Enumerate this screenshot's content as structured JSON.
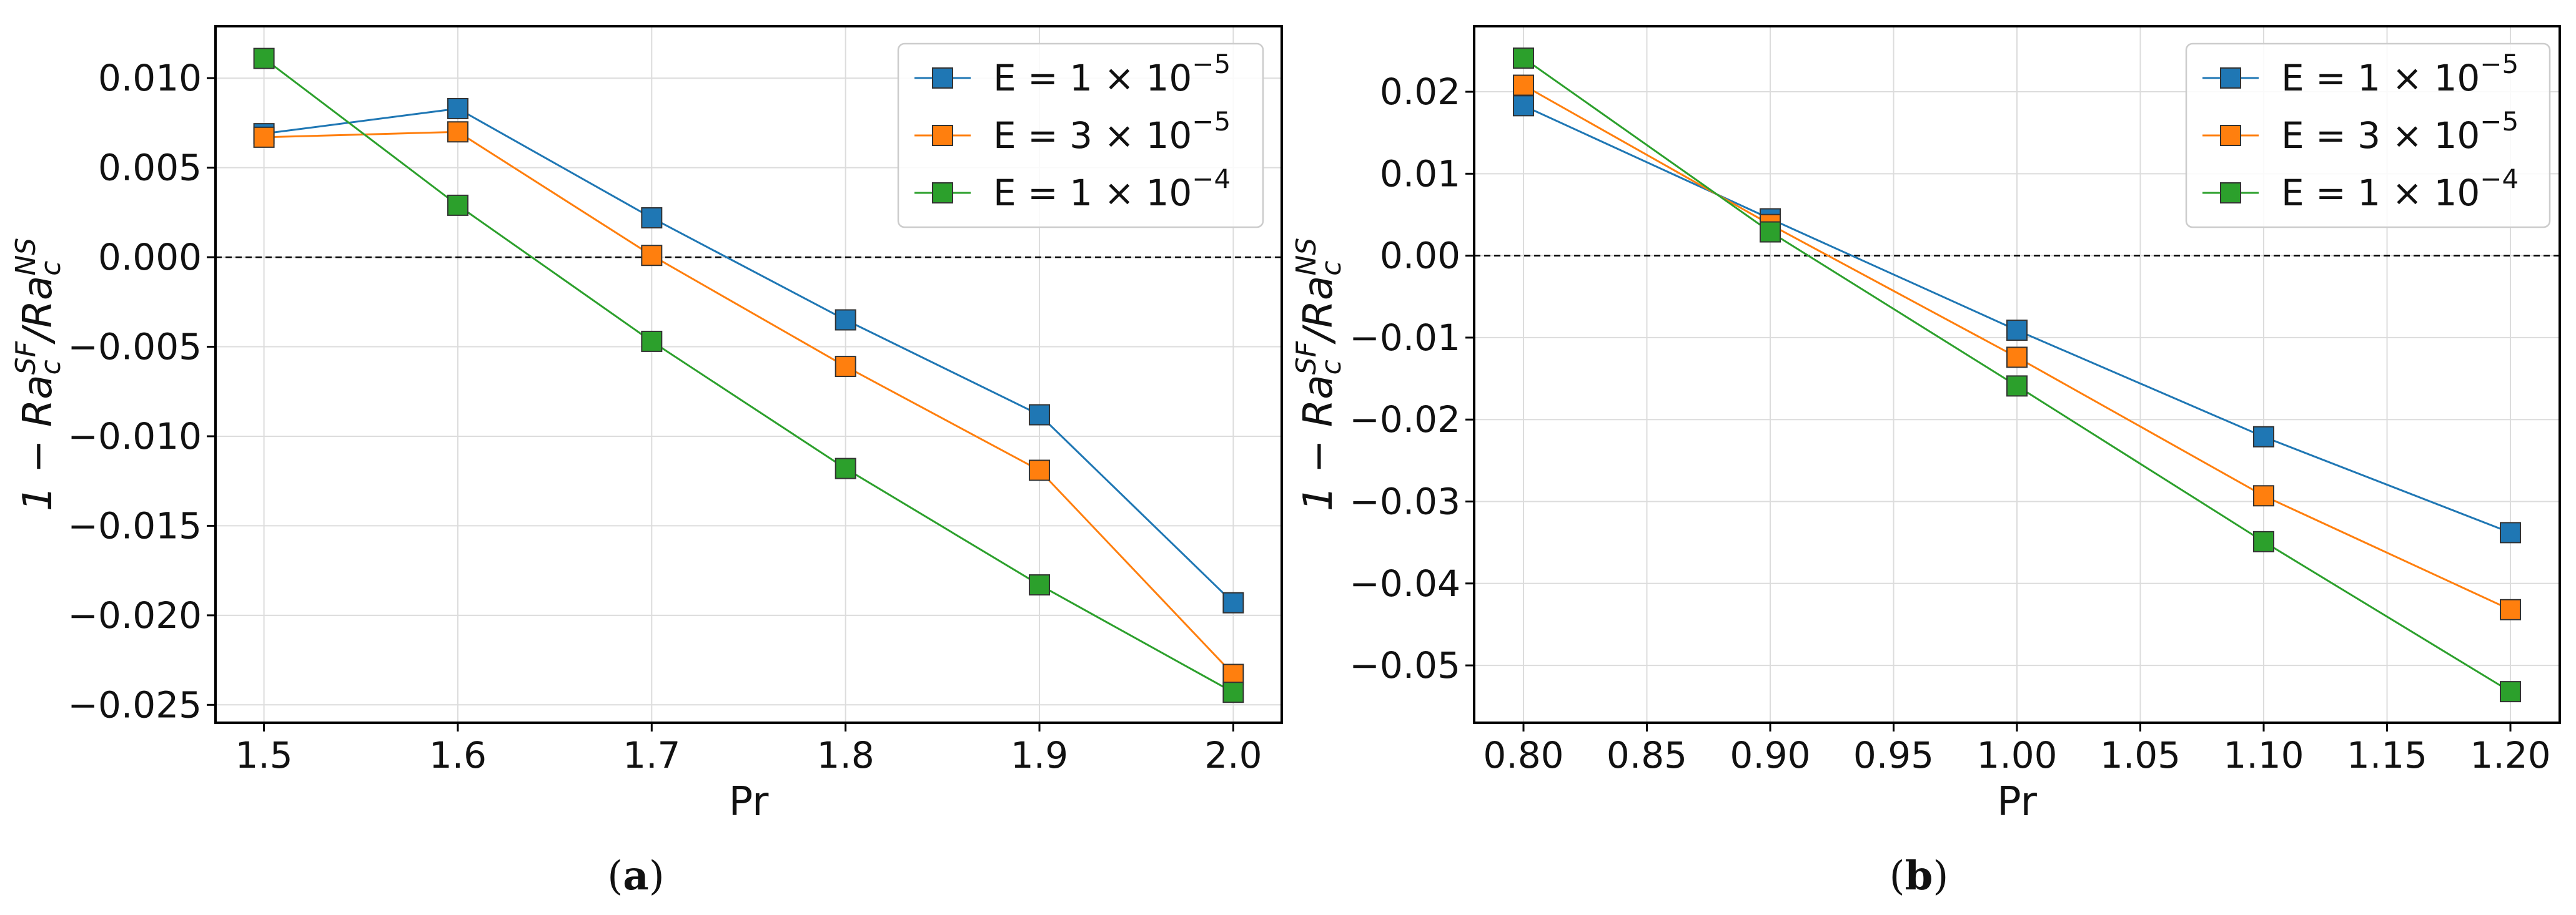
{
  "figure": {
    "panels": [
      {
        "id": "a",
        "label_open": "(",
        "label_letter": "a",
        "label_close": ")"
      },
      {
        "id": "b",
        "label_open": "(",
        "label_letter": "b",
        "label_close": ")"
      }
    ]
  },
  "chart_data": [
    {
      "type": "line",
      "panel": "a",
      "xlabel": "Pr",
      "ylabel_main": "1 − Ra",
      "ylabel_sub1": "c",
      "ylabel_sup1": "SF",
      "ylabel_mid": "/Ra",
      "ylabel_sub2": "c",
      "ylabel_sup2": "NS",
      "xlim": [
        1.475,
        2.025
      ],
      "ylim": [
        -0.026,
        0.0129
      ],
      "xticks": [
        1.5,
        1.6,
        1.7,
        1.8,
        1.9,
        2.0
      ],
      "xtick_labels": [
        "1.5",
        "1.6",
        "1.7",
        "1.8",
        "1.9",
        "2.0"
      ],
      "yticks": [
        -0.025,
        -0.02,
        -0.015,
        -0.01,
        -0.005,
        0.0,
        0.005,
        0.01
      ],
      "ytick_labels": [
        "−0.025",
        "−0.020",
        "−0.015",
        "−0.010",
        "−0.005",
        "0.000",
        "0.005",
        "0.010"
      ],
      "zero_line": 0.0,
      "grid": true,
      "legend_position": "top-right",
      "x": [
        1.5,
        1.6,
        1.7,
        1.8,
        1.9,
        2.0
      ],
      "series": [
        {
          "name": "E = 1 × 10",
          "exponent": "−5",
          "color": "#1f77b4",
          "values": [
            0.0069,
            0.0083,
            0.0022,
            -0.0035,
            -0.0088,
            -0.0193
          ]
        },
        {
          "name": "E = 3 × 10",
          "exponent": "−5",
          "color": "#ff7f0e",
          "values": [
            0.0067,
            0.007,
            0.0001,
            -0.0061,
            -0.0119,
            -0.0233
          ]
        },
        {
          "name": "E = 1 × 10",
          "exponent": "−4",
          "color": "#2ca02c",
          "values": [
            0.0111,
            0.0029,
            -0.0047,
            -0.0118,
            -0.0183,
            -0.0243
          ]
        }
      ]
    },
    {
      "type": "line",
      "panel": "b",
      "xlabel": "Pr",
      "ylabel_main": "1 − Ra",
      "ylabel_sub1": "c",
      "ylabel_sup1": "SF",
      "ylabel_mid": "/Ra",
      "ylabel_sub2": "c",
      "ylabel_sup2": "NS",
      "xlim": [
        0.78,
        1.22
      ],
      "ylim": [
        -0.057,
        0.028
      ],
      "xticks": [
        0.8,
        0.85,
        0.9,
        0.95,
        1.0,
        1.05,
        1.1,
        1.15,
        1.2
      ],
      "xtick_labels": [
        "0.80",
        "0.85",
        "0.90",
        "0.95",
        "1.00",
        "1.05",
        "1.10",
        "1.15",
        "1.20"
      ],
      "yticks": [
        -0.05,
        -0.04,
        -0.03,
        -0.02,
        -0.01,
        0.0,
        0.01,
        0.02
      ],
      "ytick_labels": [
        "−0.05",
        "−0.04",
        "−0.03",
        "−0.02",
        "−0.01",
        "0.00",
        "0.01",
        "0.02"
      ],
      "zero_line": 0.0,
      "grid": true,
      "legend_position": "top-right",
      "x": [
        0.8,
        0.9,
        1.0,
        1.1,
        1.2
      ],
      "series": [
        {
          "name": "E = 1 × 10",
          "exponent": "−5",
          "color": "#1f77b4",
          "values": [
            0.0183,
            0.0045,
            -0.0091,
            -0.0221,
            -0.0338
          ]
        },
        {
          "name": "E = 3 × 10",
          "exponent": "−5",
          "color": "#ff7f0e",
          "values": [
            0.0208,
            0.0038,
            -0.0124,
            -0.0293,
            -0.0432
          ]
        },
        {
          "name": "E = 1 × 10",
          "exponent": "−4",
          "color": "#2ca02c",
          "values": [
            0.0241,
            0.0029,
            -0.0159,
            -0.0349,
            -0.0532
          ]
        }
      ]
    }
  ]
}
